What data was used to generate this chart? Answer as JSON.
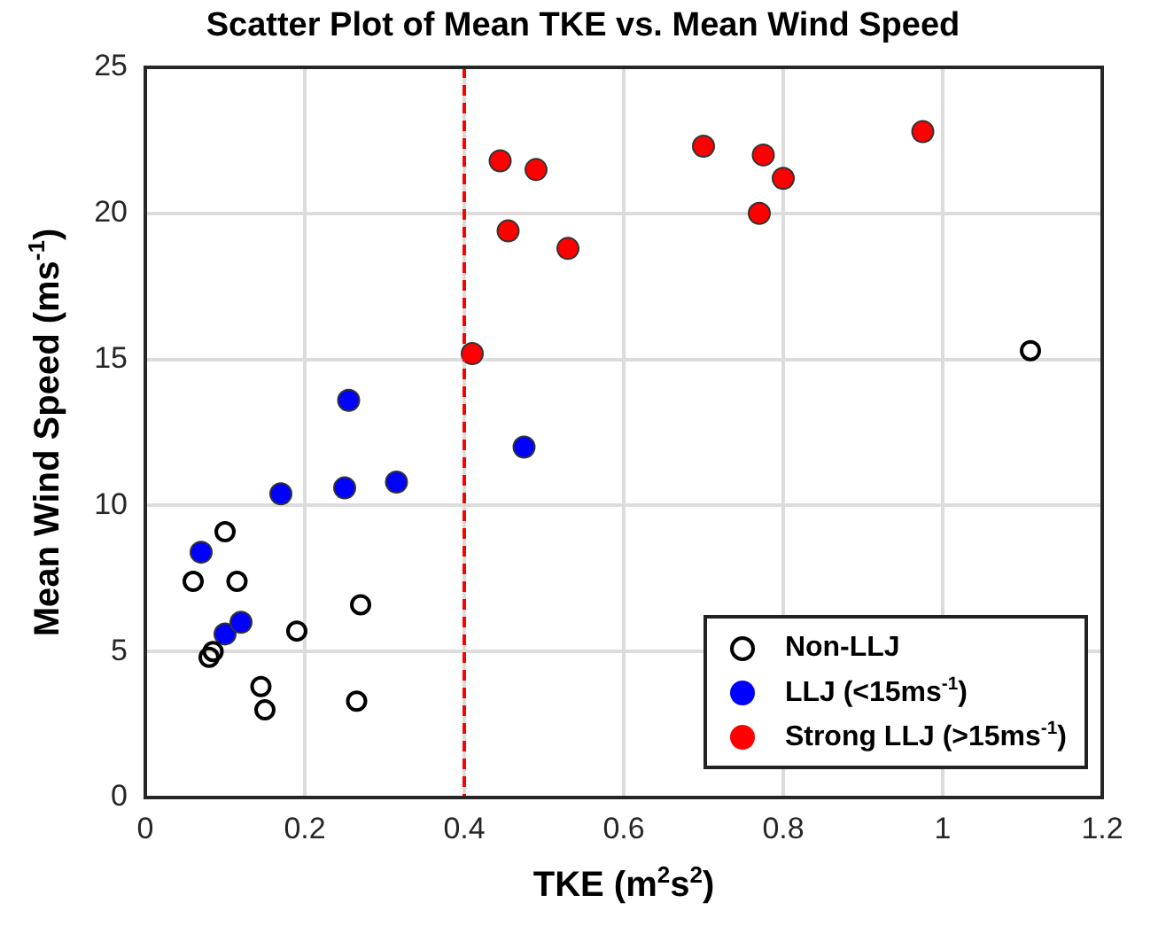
{
  "chart_data": {
    "type": "scatter",
    "title": "Scatter Plot of Mean TKE vs. Mean Wind Speed",
    "xlabel": "TKE (m$^{2}$s$^{2}$)",
    "ylabel": "Mean Wind Speed (ms$^{-1}$)",
    "xlim": [
      0,
      1.2
    ],
    "xticks": [
      0,
      0.2,
      0.4,
      0.6,
      0.8,
      1,
      1.2
    ],
    "ylim": [
      0,
      25
    ],
    "yticks": [
      0,
      5,
      10,
      15,
      20,
      25
    ],
    "grid": true,
    "legend": "bottom right",
    "marker": "circle",
    "series": [
      {
        "name": "Non-LLJ",
        "color": "#000000",
        "marker": "circle",
        "x": [
          0.06,
          0.1,
          0.115,
          0.08,
          0.085,
          0.145,
          0.15,
          0.19,
          0.27,
          0.265,
          1.11
        ],
        "values": [
          7.4,
          9.1,
          7.4,
          4.8,
          5.0,
          3.8,
          3.0,
          5.7,
          6.6,
          3.3,
          15.3
        ]
      },
      {
        "name": "LLJ (<15ms$^{-1}$)",
        "color": "#0000ff",
        "x": [
          0.07,
          0.1,
          0.12,
          0.17,
          0.25,
          0.255,
          0.315,
          0.475
        ],
        "values": [
          8.4,
          5.6,
          6.0,
          10.4,
          10.6,
          13.6,
          10.8,
          12.0
        ]
      },
      {
        "name": "Strong LLJ (>15ms$^{-1}$)",
        "color": "#ff0000",
        "x": [
          0.41,
          0.445,
          0.455,
          0.49,
          0.53,
          0.7,
          0.77,
          0.775,
          0.8,
          0.975
        ],
        "values": [
          15.2,
          21.8,
          19.4,
          21.5,
          18.8,
          22.3,
          20.0,
          22.0,
          21.2,
          22.8
        ]
      }
    ],
    "ref_lines": [
      {
        "axis": "x",
        "value": 0.4,
        "color": "#ff0000",
        "line_style": "dashed"
      }
    ]
  }
}
